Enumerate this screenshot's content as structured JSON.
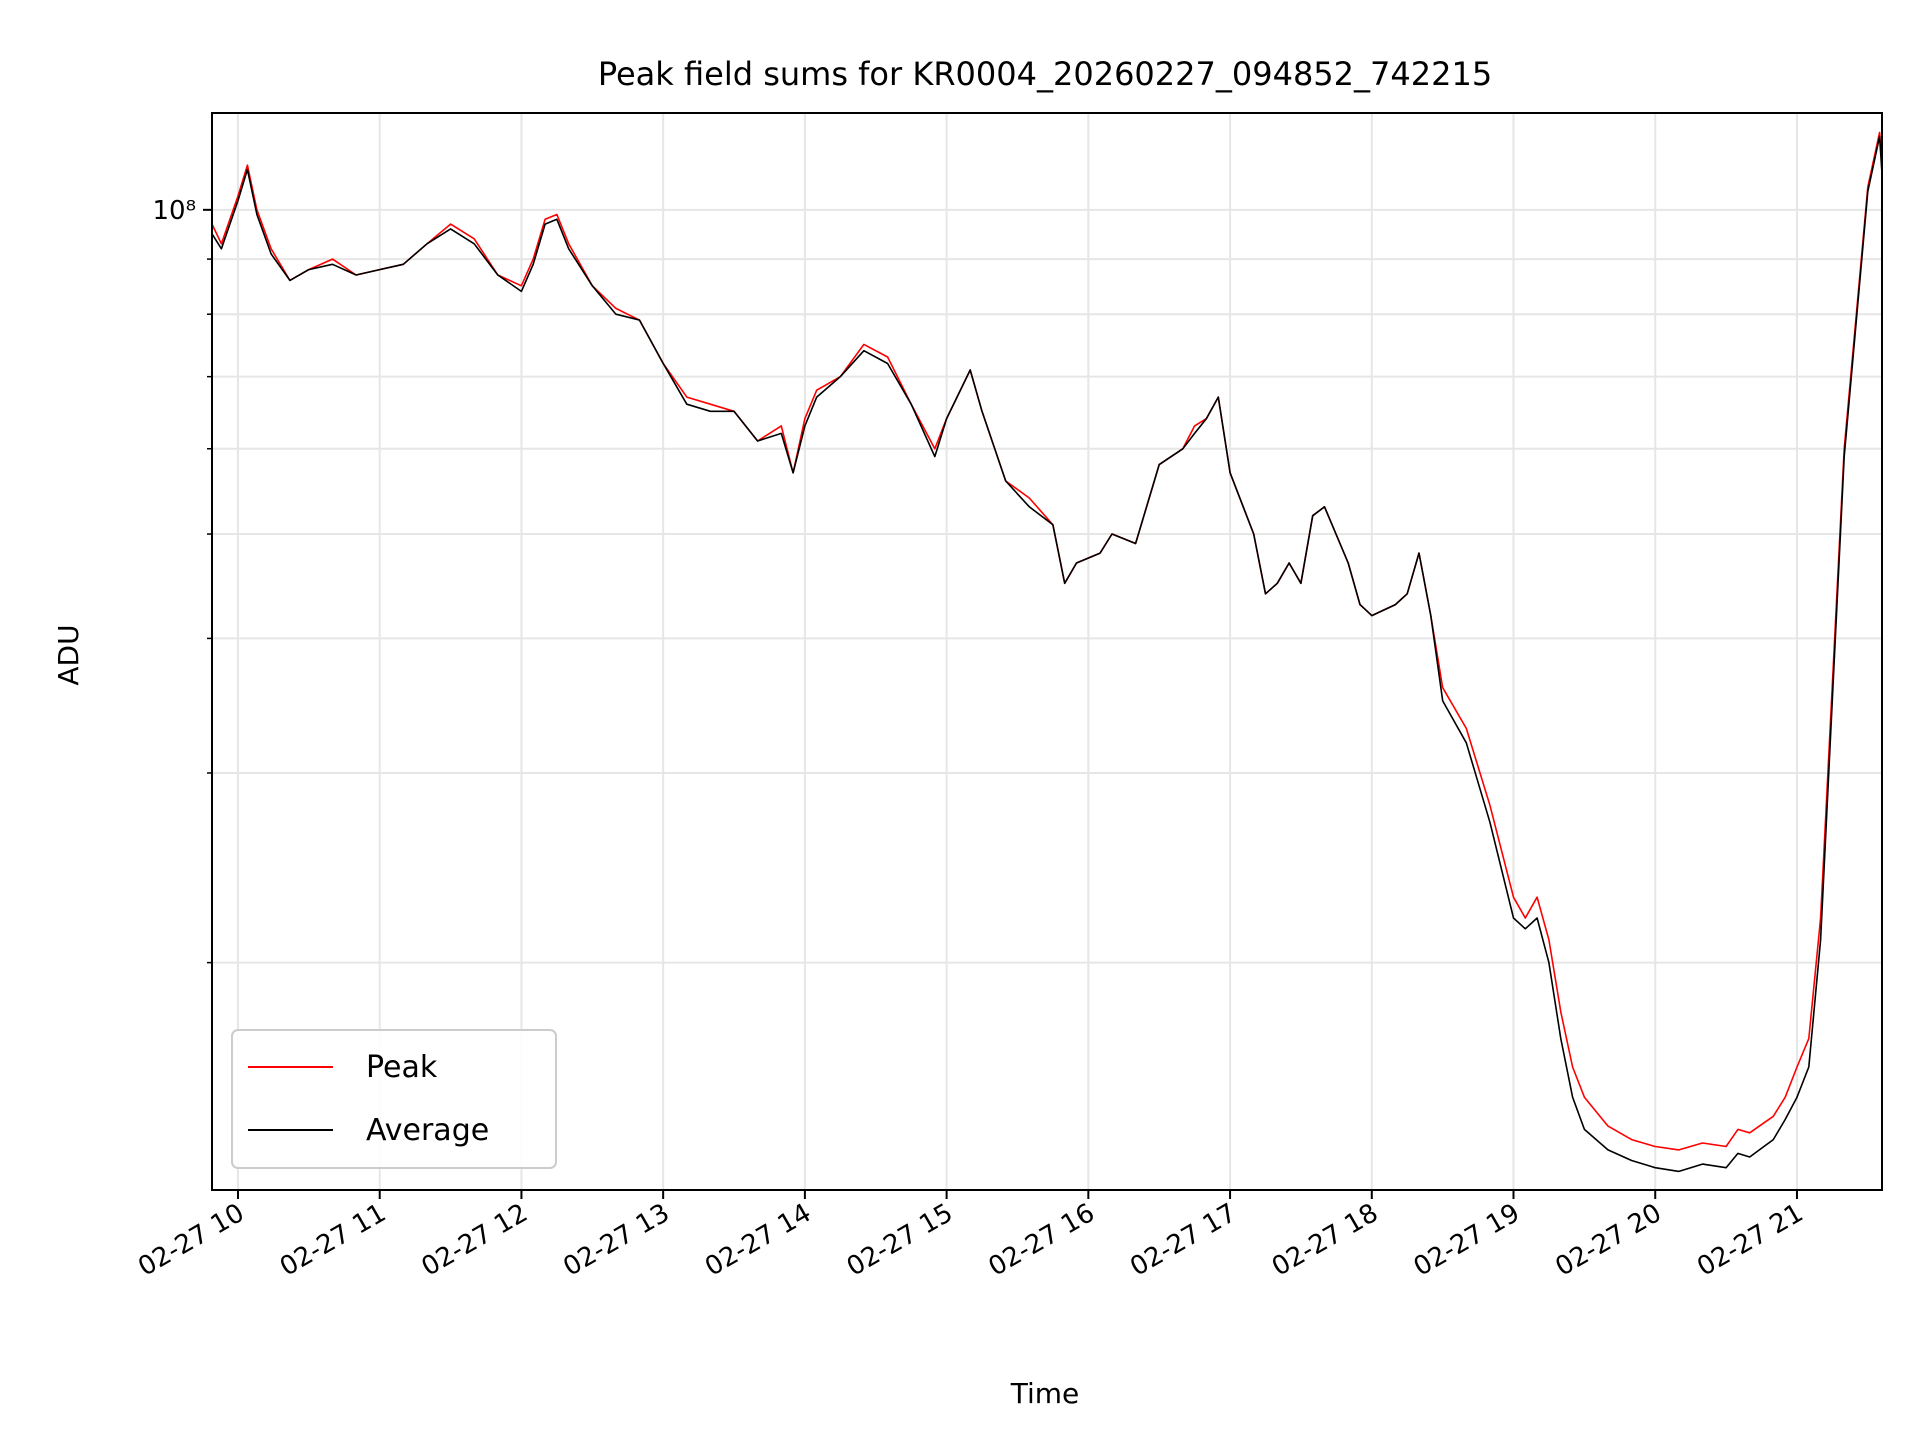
{
  "chart_data": {
    "type": "line",
    "title": "Peak field sums for KR0004_20260227_094852_742215",
    "xlabel": "Time",
    "ylabel": "ADU",
    "x_scale": "time",
    "y_scale": "log",
    "xlim": [
      "02-27 09:49",
      "02-27 21:36"
    ],
    "ylim": [
      12300000,
      123000000
    ],
    "x_tick_labels": [
      "02-27 10",
      "02-27 11",
      "02-27 12",
      "02-27 13",
      "02-27 14",
      "02-27 15",
      "02-27 16",
      "02-27 17",
      "02-27 18",
      "02-27 19",
      "02-27 20",
      "02-27 21"
    ],
    "y_tick_major_label": "10⁸",
    "y_tick_major_value": 100000000,
    "y_tick_minor_values": [
      20000000,
      30000000,
      40000000,
      50000000,
      60000000,
      70000000,
      80000000,
      90000000
    ],
    "grid": true,
    "legend": "lower-left",
    "x": [
      "09:49",
      "09:53",
      "10:00",
      "10:04",
      "10:08",
      "10:14",
      "10:22",
      "10:30",
      "10:40",
      "10:50",
      "11:00",
      "11:10",
      "11:20",
      "11:30",
      "11:40",
      "11:50",
      "12:00",
      "12:05",
      "12:10",
      "12:15",
      "12:20",
      "12:30",
      "12:40",
      "12:50",
      "13:00",
      "13:10",
      "13:20",
      "13:30",
      "13:40",
      "13:50",
      "13:55",
      "14:00",
      "14:05",
      "14:15",
      "14:25",
      "14:35",
      "14:45",
      "14:55",
      "15:00",
      "15:10",
      "15:15",
      "15:25",
      "15:35",
      "15:45",
      "15:50",
      "15:55",
      "16:05",
      "16:10",
      "16:20",
      "16:30",
      "16:40",
      "16:45",
      "16:50",
      "16:55",
      "17:00",
      "17:10",
      "17:15",
      "17:20",
      "17:25",
      "17:30",
      "17:35",
      "17:40",
      "17:50",
      "17:55",
      "18:00",
      "18:10",
      "18:15",
      "18:20",
      "18:25",
      "18:30",
      "18:40",
      "18:50",
      "19:00",
      "19:05",
      "19:10",
      "19:15",
      "19:20",
      "19:25",
      "19:30",
      "19:40",
      "19:50",
      "20:00",
      "20:10",
      "20:20",
      "20:30",
      "20:35",
      "20:40",
      "20:50",
      "20:55",
      "21:00",
      "21:05",
      "21:10",
      "21:20",
      "21:30",
      "21:35",
      "21:36"
    ],
    "series": [
      {
        "name": "Peak",
        "color": "#ff0000",
        "values": [
          97000000,
          93000000,
          103000000,
          110000000,
          100000000,
          92000000,
          86000000,
          88000000,
          90000000,
          87000000,
          88000000,
          89000000,
          93000000,
          97000000,
          94000000,
          87000000,
          85000000,
          90000000,
          98000000,
          99000000,
          93000000,
          85000000,
          81000000,
          79000000,
          72000000,
          67000000,
          66000000,
          65000000,
          61000000,
          63000000,
          57000000,
          64000000,
          68000000,
          70000000,
          75000000,
          73000000,
          66000000,
          60000000,
          64000000,
          71000000,
          65000000,
          56000000,
          54000000,
          51000000,
          45000000,
          47000000,
          48000000,
          50000000,
          49000000,
          58000000,
          60000000,
          63000000,
          64000000,
          67000000,
          57000000,
          50000000,
          44000000,
          45000000,
          47000000,
          45000000,
          52000000,
          53000000,
          47000000,
          43000000,
          42000000,
          43000000,
          44000000,
          48000000,
          42000000,
          36000000,
          33000000,
          28000000,
          23000000,
          22000000,
          23000000,
          21000000,
          18000000,
          16000000,
          15000000,
          14100000,
          13700000,
          13500000,
          13400000,
          13600000,
          13500000,
          14000000,
          13900000,
          14400000,
          15000000,
          16000000,
          17000000,
          22000000,
          60000000,
          105000000,
          118000000,
          110000000
        ]
      },
      {
        "name": "Average",
        "color": "#000000",
        "values": [
          95000000,
          92000000,
          102000000,
          109000000,
          99000000,
          91000000,
          86000000,
          88000000,
          89000000,
          87000000,
          88000000,
          89000000,
          93000000,
          96000000,
          93000000,
          87000000,
          84000000,
          89000000,
          97000000,
          98000000,
          92000000,
          85000000,
          80000000,
          79000000,
          72000000,
          66000000,
          65000000,
          65000000,
          61000000,
          62000000,
          57000000,
          63000000,
          67000000,
          70000000,
          74000000,
          72000000,
          66000000,
          59000000,
          64000000,
          71000000,
          65000000,
          56000000,
          53000000,
          51000000,
          45000000,
          47000000,
          48000000,
          50000000,
          49000000,
          58000000,
          60000000,
          62000000,
          64000000,
          67000000,
          57000000,
          50000000,
          44000000,
          45000000,
          47000000,
          45000000,
          52000000,
          53000000,
          47000000,
          43000000,
          42000000,
          43000000,
          44000000,
          48000000,
          42000000,
          35000000,
          32000000,
          27000000,
          22000000,
          21500000,
          22000000,
          20000000,
          17000000,
          15000000,
          14000000,
          13400000,
          13100000,
          12900000,
          12800000,
          13000000,
          12900000,
          13300000,
          13200000,
          13700000,
          14300000,
          15000000,
          16000000,
          21000000,
          59000000,
          104000000,
          117000000,
          108000000
        ]
      }
    ]
  }
}
